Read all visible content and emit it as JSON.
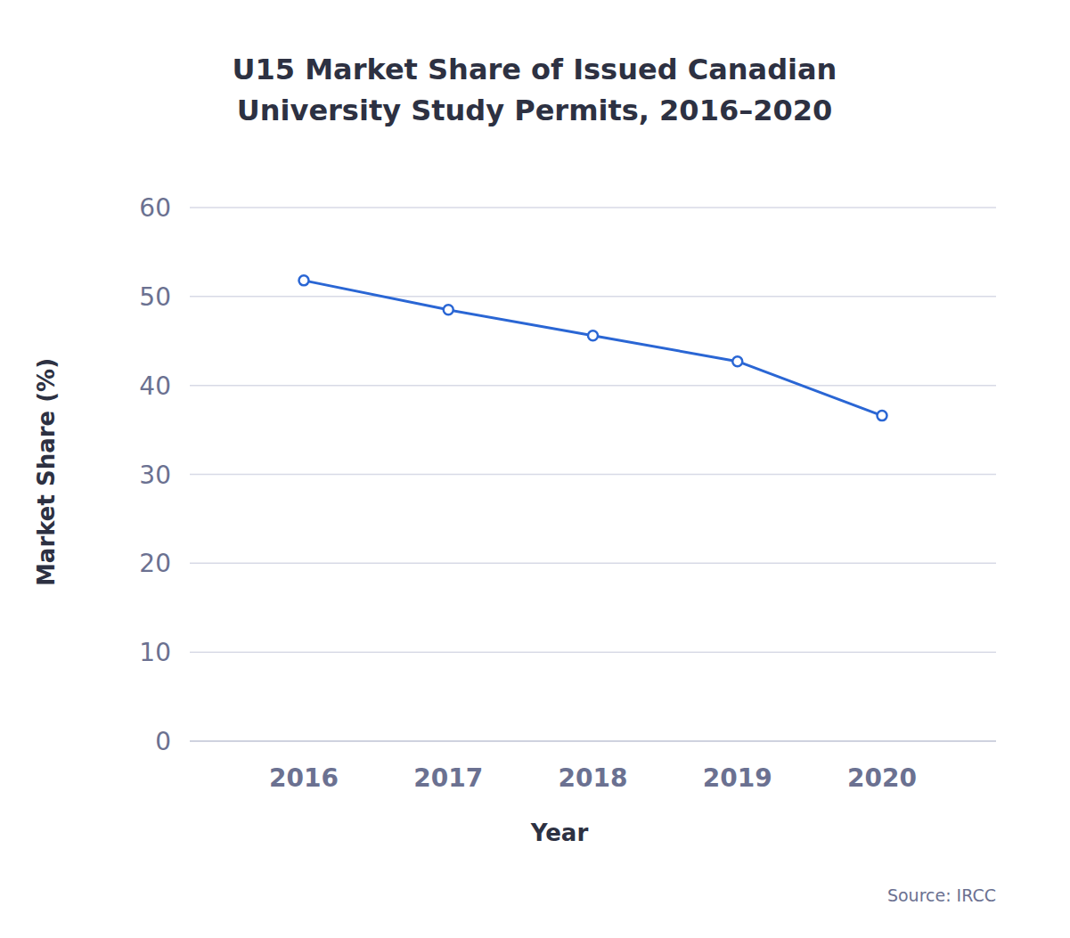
{
  "chart_data": {
    "type": "line",
    "title": "U15 Market Share of Issued Canadian University Study Permits, 2016–2020",
    "x_label": "Year",
    "y_label": "Market Share (%)",
    "source": "Source: IRCC",
    "categories": [
      "2016",
      "2017",
      "2018",
      "2019",
      "2020"
    ],
    "values": [
      51.8,
      48.5,
      45.6,
      42.7,
      36.6
    ],
    "color": "#2a66d4",
    "marker": "circle",
    "ylim": [
      0,
      60
    ],
    "yticks": [
      0,
      10,
      20,
      30,
      40,
      50,
      60
    ],
    "grid": true
  }
}
